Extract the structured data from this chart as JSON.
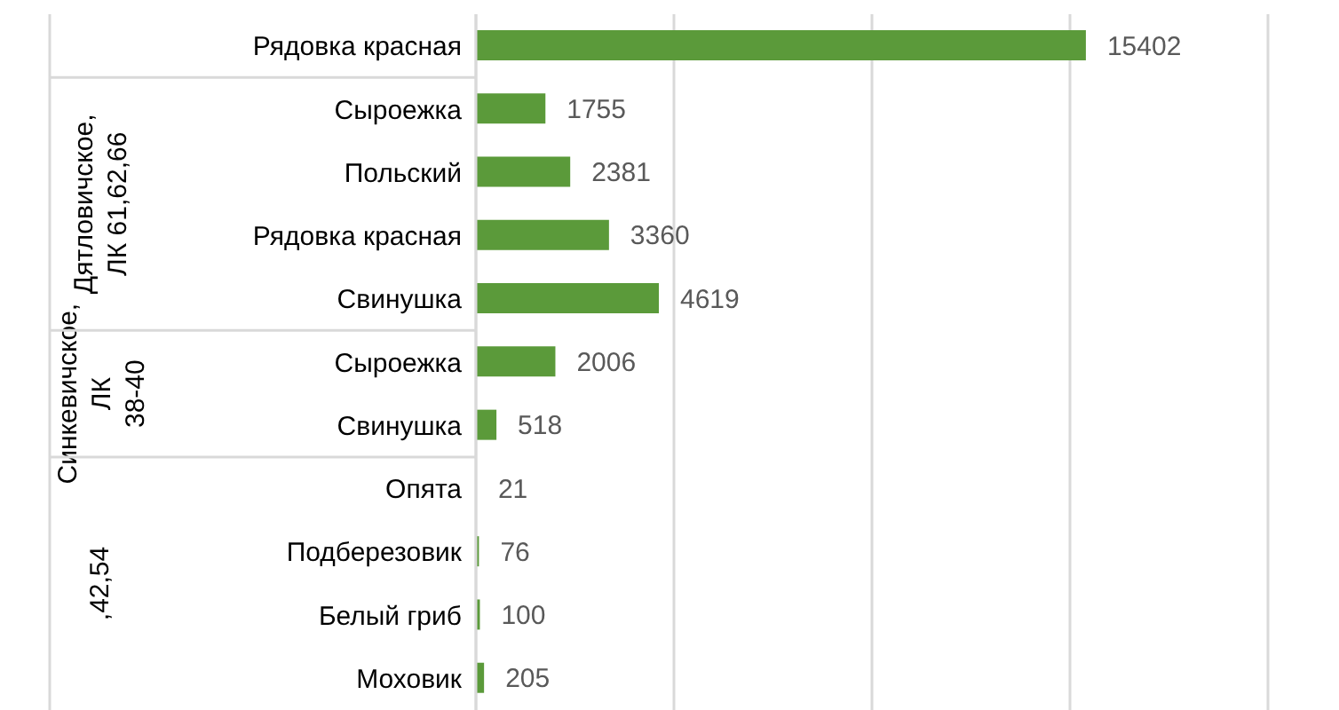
{
  "chart_data": {
    "type": "bar",
    "orientation": "horizontal",
    "categories": [
      "Рядовка красная",
      "Сыроежка",
      "Польский",
      "Рядовка красная",
      "Свинушка",
      "Сыроежка",
      "Свинушка",
      "Опята",
      "Подберезовик",
      "Белый гриб",
      "Моховик"
    ],
    "values": [
      15402,
      1755,
      2381,
      3360,
      4619,
      2006,
      518,
      21,
      76,
      100,
      205
    ],
    "color": "#5b9a3a",
    "xlim": [
      0,
      20000
    ],
    "xticks": [
      0,
      5000,
      10000,
      15000,
      20000
    ],
    "grid": "x",
    "tick_labels": "y",
    "data_labels": true,
    "annotations": [
      "Дятловичское, ЛК 61,62,66",
      "Синкевичское, ЛК 38-40",
      ",42,54"
    ]
  }
}
